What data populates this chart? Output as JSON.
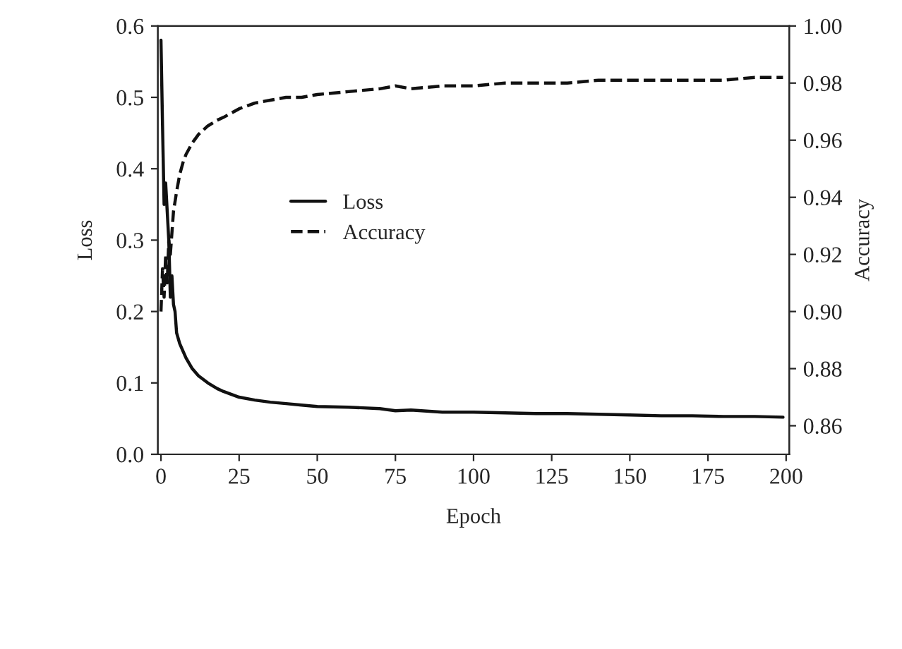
{
  "chart_data": {
    "type": "line",
    "xlabel": "Epoch",
    "ylabel": "Loss",
    "y2label": "Accuracy",
    "xlim": [
      -1,
      201
    ],
    "xticks": [
      0,
      25,
      50,
      75,
      100,
      125,
      150,
      175,
      200
    ],
    "ylim": [
      0.0,
      0.6
    ],
    "yticks": [
      {
        "value": 0.0,
        "label": "0.0"
      },
      0.1,
      0.2,
      0.3,
      0.4,
      0.5,
      0.6
    ],
    "y2lim": [
      0.85,
      1.0
    ],
    "y2ticks": [
      0.86,
      0.88,
      {
        "value": 0.9,
        "label": "0.90"
      },
      0.92,
      0.94,
      0.96,
      0.98,
      {
        "value": 1.0,
        "label": "1.00"
      }
    ],
    "grid": false,
    "legend": "center left",
    "marker": "none",
    "series": [
      {
        "name": "Loss",
        "color": "#111111",
        "line_style": "solid",
        "x": [
          0,
          0.5,
          1,
          1.5,
          2,
          2.5,
          3,
          3.5,
          4,
          4.5,
          5,
          6,
          8,
          10,
          12,
          15,
          18,
          20,
          25,
          30,
          35,
          40,
          45,
          50,
          60,
          70,
          75,
          80,
          90,
          100,
          110,
          120,
          130,
          140,
          150,
          160,
          170,
          180,
          190,
          199
        ],
        "values": [
          0.58,
          0.46,
          0.35,
          0.38,
          0.34,
          0.3,
          0.22,
          0.25,
          0.21,
          0.2,
          0.17,
          0.155,
          0.135,
          0.12,
          0.11,
          0.1,
          0.092,
          0.088,
          0.08,
          0.076,
          0.073,
          0.071,
          0.069,
          0.067,
          0.066,
          0.064,
          0.061,
          0.062,
          0.059,
          0.059,
          0.058,
          0.057,
          0.057,
          0.056,
          0.055,
          0.054,
          0.054,
          0.053,
          0.053,
          0.052
        ]
      },
      {
        "name": "Accuracy",
        "color": "#111111",
        "line_style": "dashed",
        "axis": "y2",
        "x": [
          0,
          0.5,
          1,
          1.5,
          2,
          2.5,
          3,
          4,
          5,
          6,
          7,
          8,
          10,
          12,
          15,
          18,
          20,
          25,
          30,
          35,
          40,
          45,
          50,
          60,
          70,
          75,
          80,
          90,
          100,
          110,
          120,
          130,
          140,
          150,
          160,
          170,
          180,
          190,
          199
        ],
        "values": [
          0.9,
          0.915,
          0.905,
          0.92,
          0.91,
          0.925,
          0.92,
          0.935,
          0.942,
          0.948,
          0.952,
          0.955,
          0.959,
          0.962,
          0.965,
          0.967,
          0.968,
          0.971,
          0.973,
          0.974,
          0.975,
          0.975,
          0.976,
          0.977,
          0.978,
          0.979,
          0.978,
          0.979,
          0.979,
          0.98,
          0.98,
          0.98,
          0.981,
          0.981,
          0.981,
          0.981,
          0.981,
          0.982,
          0.982
        ]
      }
    ]
  }
}
